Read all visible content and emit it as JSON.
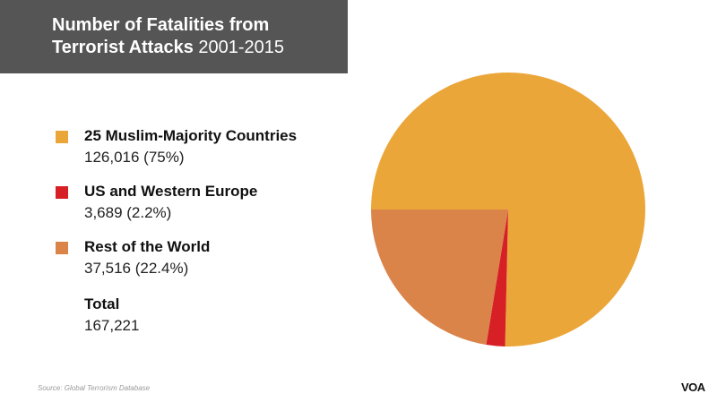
{
  "chart_data": {
    "type": "pie",
    "title": "Number of Fatalities from",
    "title_bold": "Terrorist Attacks",
    "title_years": "2001-2015",
    "slices": [
      {
        "label": "25 Muslim-Majority Countries",
        "value": 126016,
        "display": "126,016 (75%)",
        "color": "#EBA63A"
      },
      {
        "label": "US and Western Europe",
        "value": 3689,
        "display": "3,689 (2.2%)",
        "color": "#D71F26"
      },
      {
        "label": "Rest of the World",
        "value": 37516,
        "display": "37,516 (22.4%)",
        "color": "#DA844A"
      }
    ],
    "total_label": "Total",
    "total_value": "167,221",
    "source": "Source: Global Terrorism Database",
    "logo": "VOA"
  }
}
